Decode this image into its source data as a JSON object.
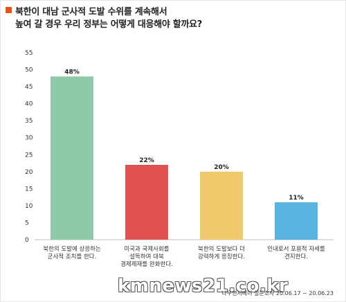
{
  "header": {
    "title_line1": "북한이 대남 군사적 도발 수위를 계속해서",
    "title_line2": "높여 갈 경우 우리 정부는 어떻게 대응해야 할까요?"
  },
  "colors": {
    "accent": "#e5541f",
    "bars": [
      "#8fc9a9",
      "#e05151",
      "#efcb6a",
      "#5ab4e2"
    ]
  },
  "chart_data": {
    "type": "bar",
    "title": "북한이 대남 군사적 도발 수위를 계속해서 높여 갈 경우 우리 정부는 어떻게 대응해야 할까요?",
    "categories": [
      [
        "북한의 도발에 상응하는",
        "군사적 조치를 한다."
      ],
      [
        "미국과 국제사회를",
        "설득하여 대북",
        "경제제재를 완화한다."
      ],
      [
        "북한의 도발보다 더",
        "강력하게 응징한다."
      ],
      [
        "인내로서 포용적 자세를",
        "견지한다."
      ]
    ],
    "values": [
      48,
      22,
      20,
      11
    ],
    "data_labels": [
      "48%",
      "22%",
      "20%",
      "11%"
    ],
    "yticks": [
      0,
      5,
      10,
      15,
      20,
      25,
      30,
      35,
      40,
      45,
      50,
      55
    ],
    "ylim": [
      0,
      55
    ],
    "grid": false,
    "legend": "none"
  },
  "footer": {
    "watermark": "kmnews21.co.kr",
    "source": "나우앤서베이 설문조사 20.06.17 ~ 20.06.23"
  }
}
